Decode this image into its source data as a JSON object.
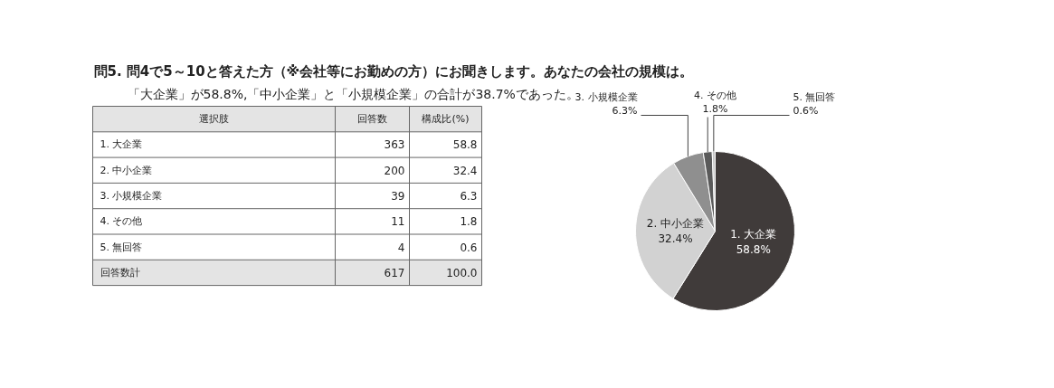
{
  "chart_data": {
    "type": "pie",
    "title": "問5. 問4で5～10と答えた方（※会社等にお勤めの方）にお聞きします。あなたの会社の規模は。",
    "subtitle": "「大企業」が58.8%,「中小企業」と「小規模企業」の合計が38.7%であった。",
    "categories": [
      "1. 大企業",
      "2. 中小企業",
      "3. 小規模企業",
      "4. その他",
      "5. 無回答"
    ],
    "values": [
      58.8,
      32.4,
      6.3,
      1.8,
      0.6
    ],
    "value_labels": [
      "58.8%",
      "32.4%",
      "6.3%",
      "1.8%",
      "0.6%"
    ],
    "colors": [
      "#403b3a",
      "#d2d2d2",
      "#8f8f8f",
      "#5a5a5a",
      "#c8c8c8"
    ],
    "annotations": [
      "選択肢",
      "回答数",
      "構成比(%)",
      "363",
      "58.8",
      "200",
      "32.4",
      "39",
      "6.3",
      "11",
      "1.8",
      "4",
      "0.6",
      "回答数計",
      "617",
      "100.0"
    ]
  }
}
